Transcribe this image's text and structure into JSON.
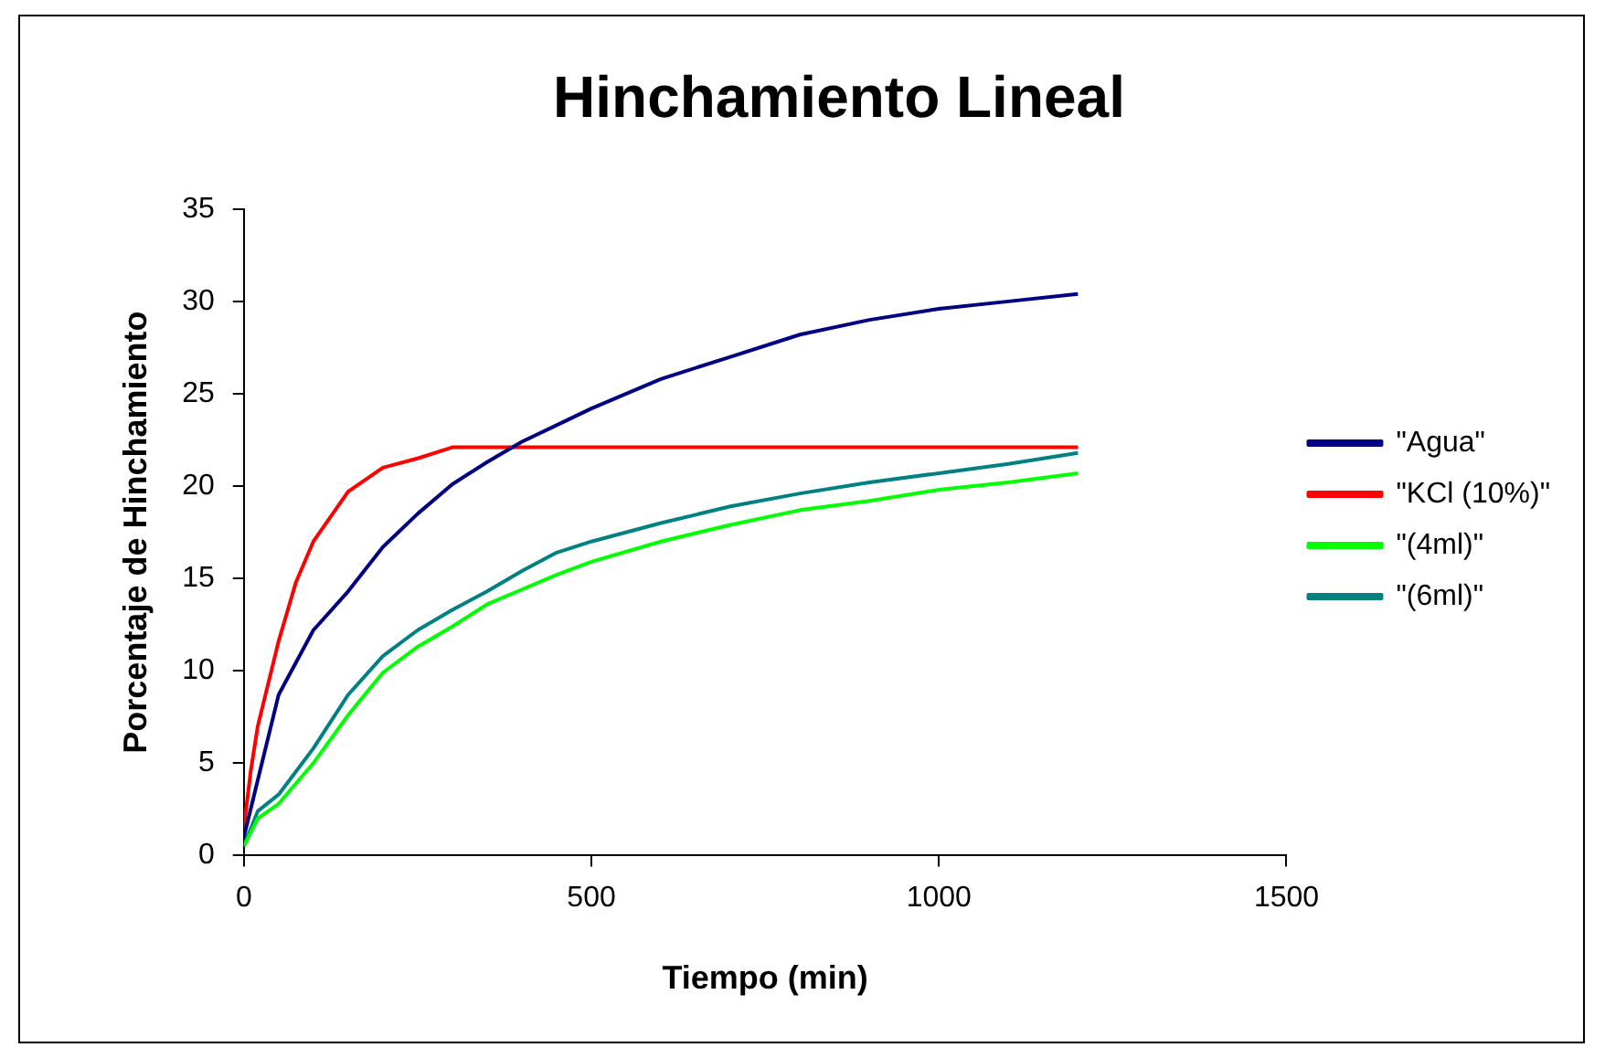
{
  "chart_data": {
    "type": "line",
    "title": "Hinchamiento Lineal",
    "xlabel": "Tiempo (min)",
    "ylabel": "Porcentaje de Hinchamiento",
    "xlim": [
      0,
      1500
    ],
    "xticks": [
      0,
      500,
      1000,
      1500
    ],
    "ylim": [
      0,
      35
    ],
    "yticks": [
      0,
      5,
      10,
      15,
      20,
      25,
      30,
      35
    ],
    "grid": false,
    "legend": "right",
    "marker": "none",
    "line_style": "solid",
    "series": [
      {
        "name": "\"Agua\"",
        "color": "#000080",
        "x": [
          0,
          13,
          50,
          100,
          150,
          200,
          250,
          300,
          350,
          400,
          450,
          500,
          600,
          700,
          800,
          900,
          1000,
          1100,
          1200
        ],
        "values": [
          1,
          3,
          8.7,
          12.2,
          14.3,
          16.7,
          18.5,
          20.1,
          21.3,
          22.4,
          23.3,
          24.2,
          25.8,
          27,
          28.2,
          29,
          29.6,
          30,
          30.4
        ]
      },
      {
        "name": "\"KCl (10%)\"",
        "color": "#ff0000",
        "x": [
          0,
          10,
          20,
          50,
          75,
          100,
          150,
          200,
          250,
          300,
          600,
          900,
          1200
        ],
        "values": [
          1.5,
          4.6,
          7,
          11.6,
          14.8,
          17,
          19.7,
          21,
          21.5,
          22.1,
          22.1,
          22.1,
          22.1
        ]
      },
      {
        "name": "\"(4ml)\"",
        "color": "#00ff00",
        "x": [
          0,
          20,
          50,
          100,
          150,
          200,
          250,
          300,
          350,
          400,
          450,
          500,
          600,
          700,
          800,
          900,
          1000,
          1100,
          1200
        ],
        "values": [
          0.5,
          2,
          2.8,
          5,
          7.6,
          9.9,
          11.3,
          12.4,
          13.6,
          14.4,
          15.2,
          15.9,
          17,
          17.9,
          18.7,
          19.2,
          19.8,
          20.2,
          20.7
        ]
      },
      {
        "name": "\"(6ml)\"",
        "color": "#008080",
        "x": [
          0,
          20,
          50,
          100,
          150,
          200,
          250,
          300,
          350,
          400,
          450,
          500,
          600,
          700,
          800,
          900,
          1000,
          1100,
          1200
        ],
        "values": [
          0.5,
          2.4,
          3.3,
          5.8,
          8.7,
          10.8,
          12.2,
          13.3,
          14.3,
          15.4,
          16.4,
          17,
          18,
          18.9,
          19.6,
          20.2,
          20.7,
          21.2,
          21.8
        ]
      }
    ]
  }
}
